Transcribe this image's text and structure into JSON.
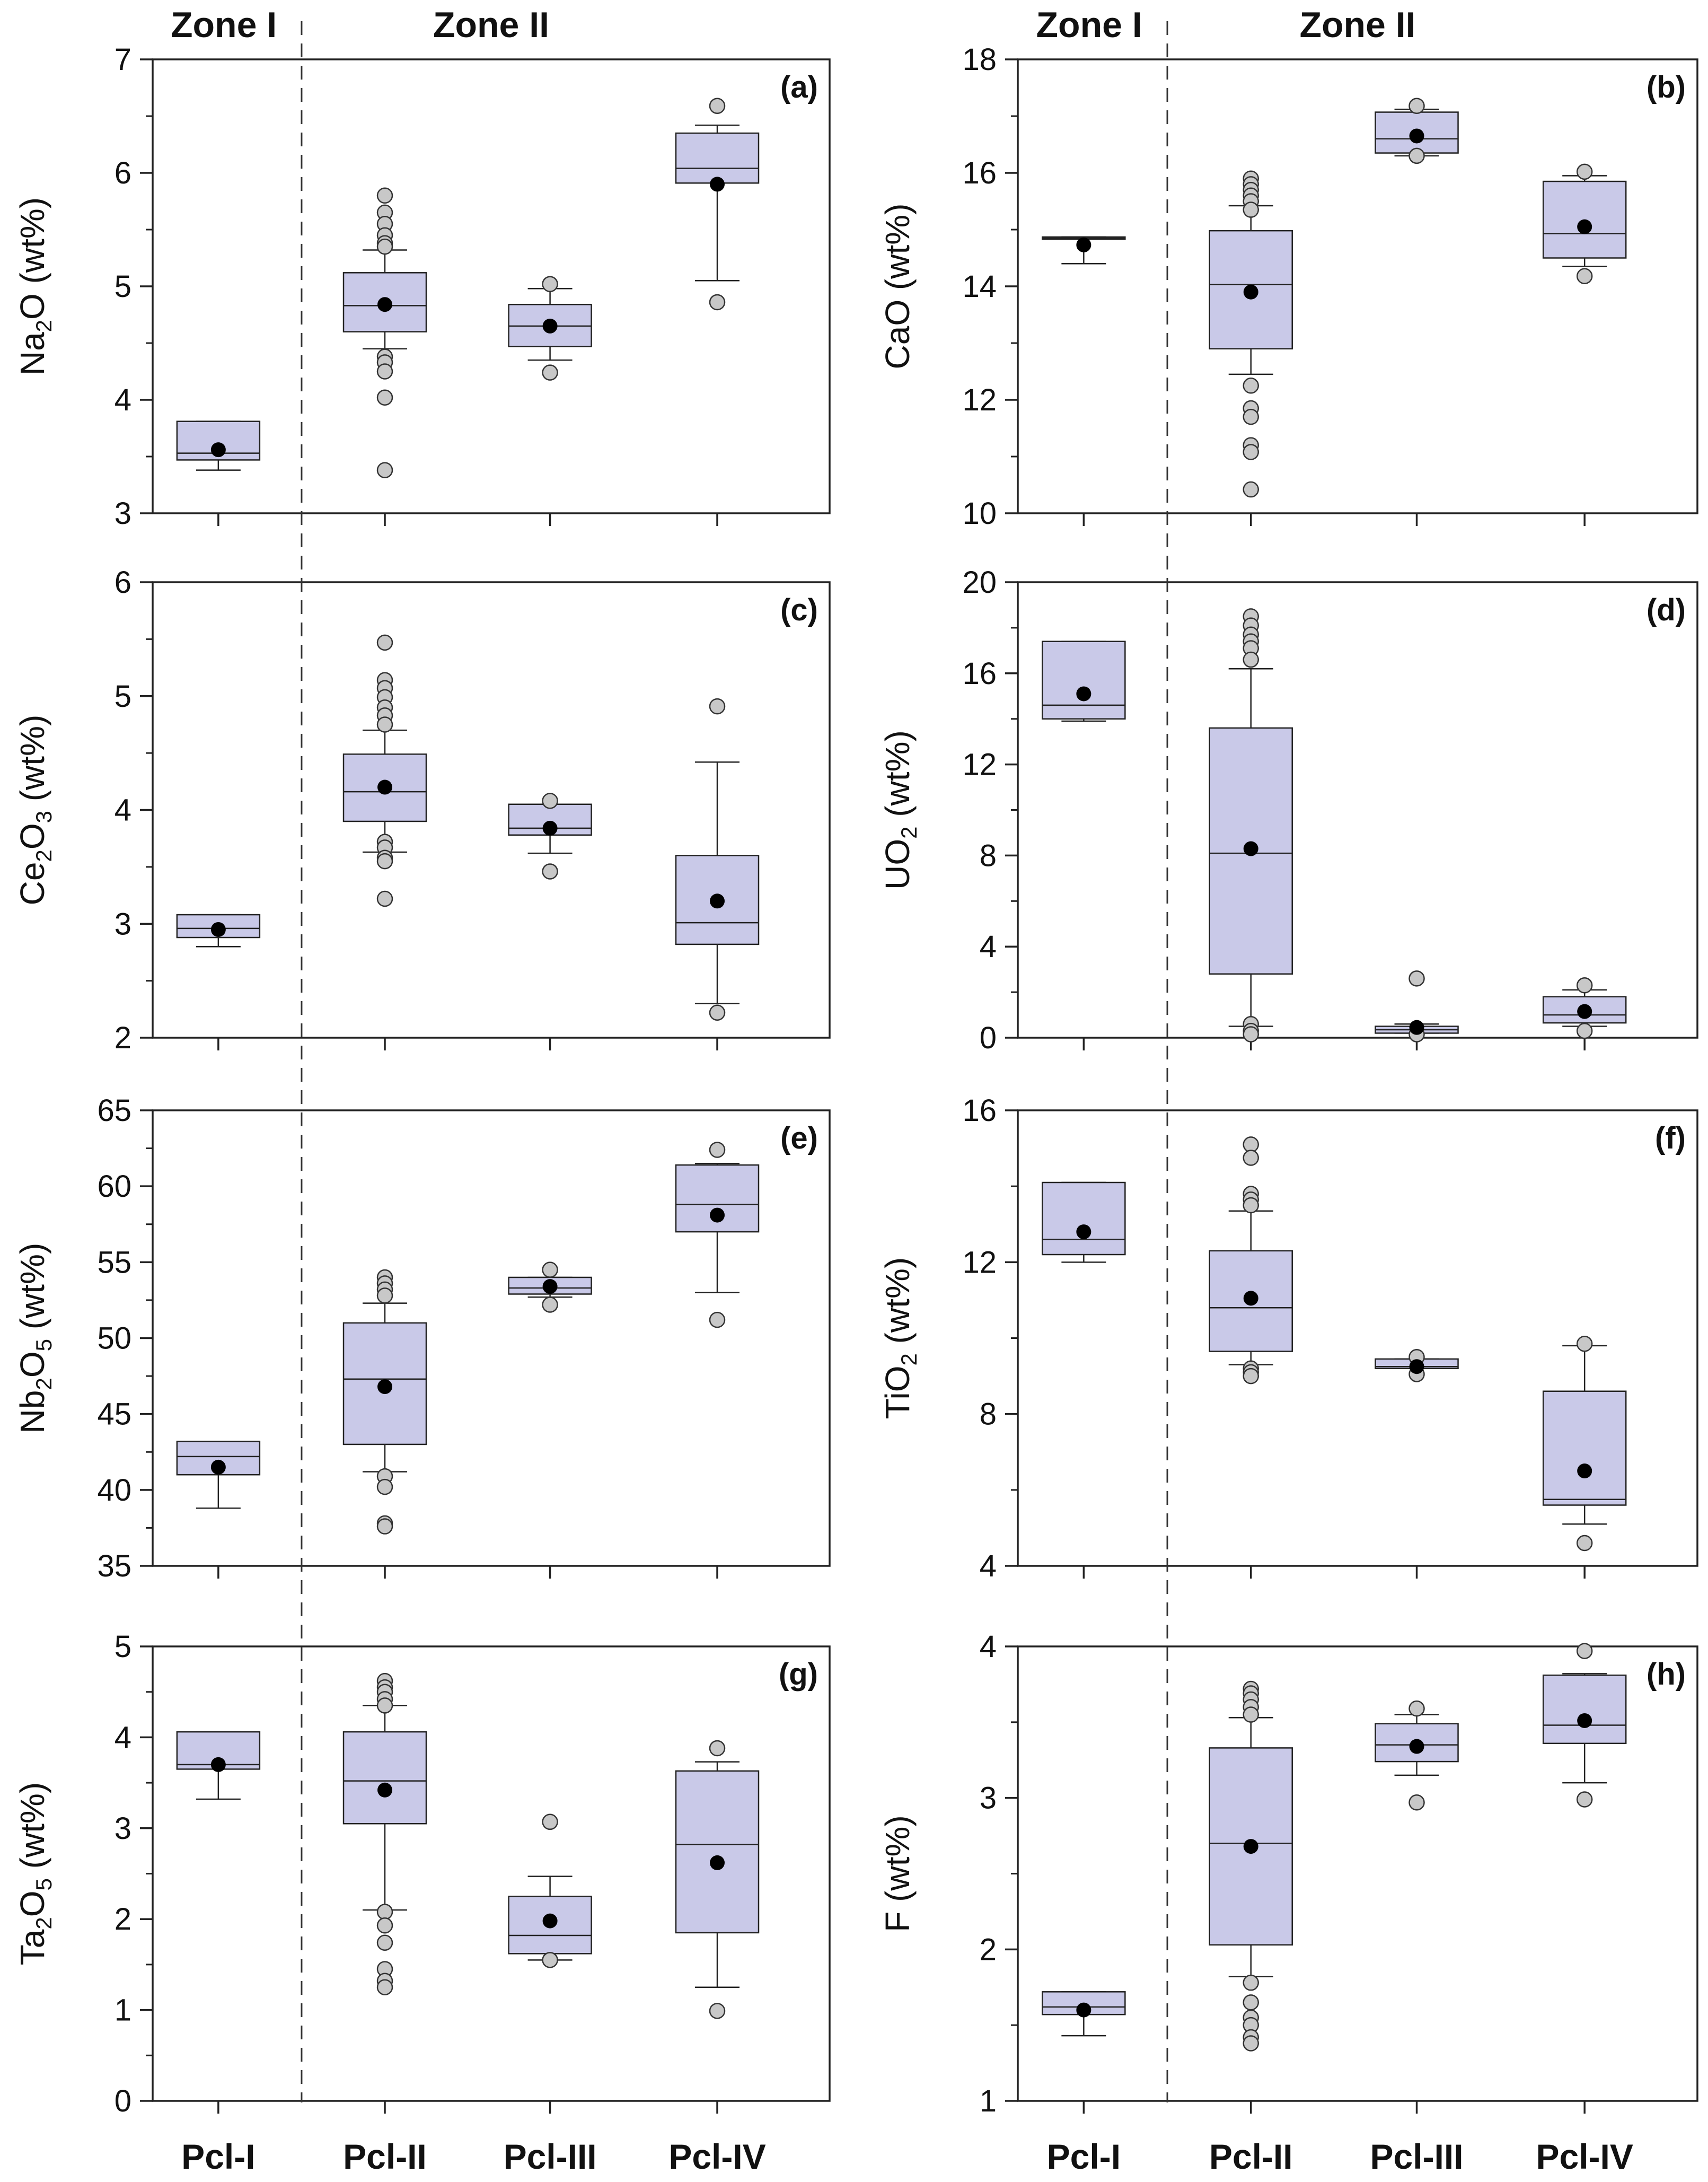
{
  "figure": {
    "zones": [
      "Zone I",
      "Zone II"
    ],
    "categories": [
      "Pcl-I",
      "Pcl-II",
      "Pcl-III",
      "Pcl-IV"
    ]
  },
  "colors": {
    "box_fill": "#c9c9e8",
    "box_stroke": "#222222",
    "outlier_fill": "#c8c8c8",
    "mean_fill": "#000000",
    "frame": "#222222"
  },
  "chart_data": [
    {
      "type": "box",
      "label": "(a)",
      "ylabel": {
        "base": "Na",
        "sub1": "2",
        "mid": "O",
        "sub2": "",
        "tail": " (wt%)"
      },
      "ylim": [
        3,
        7
      ],
      "yticks": [
        3,
        4,
        5,
        6,
        7
      ],
      "categories": [
        "Pcl-I",
        "Pcl-II",
        "Pcl-III",
        "Pcl-IV"
      ],
      "boxes": [
        {
          "whisker_low": 3.38,
          "q1": 3.47,
          "median": 3.53,
          "q3": 3.81,
          "whisker_high": 3.81,
          "mean": 3.56,
          "outliers": []
        },
        {
          "whisker_low": 4.45,
          "q1": 4.6,
          "median": 4.83,
          "q3": 5.12,
          "whisker_high": 5.32,
          "mean": 4.84,
          "outliers": [
            5.8,
            5.65,
            5.55,
            5.45,
            5.38,
            5.35,
            4.38,
            4.33,
            4.25,
            4.02,
            3.38
          ]
        },
        {
          "whisker_low": 4.35,
          "q1": 4.47,
          "median": 4.65,
          "q3": 4.84,
          "whisker_high": 4.98,
          "mean": 4.65,
          "outliers": [
            5.02,
            4.24
          ]
        },
        {
          "whisker_low": 5.05,
          "q1": 5.91,
          "median": 6.04,
          "q3": 6.35,
          "whisker_high": 6.42,
          "mean": 5.9,
          "outliers": [
            6.59,
            4.86
          ]
        }
      ]
    },
    {
      "type": "box",
      "label": "(b)",
      "ylabel": {
        "base": "CaO",
        "sub1": "",
        "mid": "",
        "sub2": "",
        "tail": " (wt%)"
      },
      "ylim": [
        10,
        18
      ],
      "yticks": [
        10,
        12,
        14,
        16,
        18
      ],
      "categories": [
        "Pcl-I",
        "Pcl-II",
        "Pcl-III",
        "Pcl-IV"
      ],
      "boxes": [
        {
          "whisker_low": 14.4,
          "q1": 14.83,
          "median": 14.85,
          "q3": 14.87,
          "whisker_high": 14.87,
          "mean": 14.73,
          "outliers": []
        },
        {
          "whisker_low": 12.45,
          "q1": 12.9,
          "median": 14.03,
          "q3": 14.98,
          "whisker_high": 15.42,
          "mean": 13.9,
          "outliers": [
            15.9,
            15.8,
            15.7,
            15.6,
            15.5,
            15.35,
            12.25,
            11.85,
            11.7,
            11.2,
            11.08,
            10.42
          ]
        },
        {
          "whisker_low": 16.3,
          "q1": 16.35,
          "median": 16.6,
          "q3": 17.07,
          "whisker_high": 17.12,
          "mean": 16.65,
          "outliers": [
            17.18,
            16.3
          ]
        },
        {
          "whisker_low": 14.35,
          "q1": 14.5,
          "median": 14.93,
          "q3": 15.85,
          "whisker_high": 15.95,
          "mean": 15.05,
          "outliers": [
            16.02,
            14.18
          ]
        }
      ]
    },
    {
      "type": "box",
      "label": "(c)",
      "ylabel": {
        "base": "Ce",
        "sub1": "2",
        "mid": "O",
        "sub2": "3",
        "tail": " (wt%)"
      },
      "ylim": [
        2,
        6
      ],
      "yticks": [
        2,
        3,
        4,
        5,
        6
      ],
      "categories": [
        "Pcl-I",
        "Pcl-II",
        "Pcl-III",
        "Pcl-IV"
      ],
      "boxes": [
        {
          "whisker_low": 2.8,
          "q1": 2.88,
          "median": 2.96,
          "q3": 3.08,
          "whisker_high": 3.08,
          "mean": 2.95,
          "outliers": []
        },
        {
          "whisker_low": 3.63,
          "q1": 3.9,
          "median": 4.16,
          "q3": 4.49,
          "whisker_high": 4.7,
          "mean": 4.2,
          "outliers": [
            5.47,
            5.14,
            5.07,
            4.99,
            4.9,
            4.83,
            4.75,
            3.72,
            3.67,
            3.58,
            3.55,
            3.22
          ]
        },
        {
          "whisker_low": 3.62,
          "q1": 3.78,
          "median": 3.84,
          "q3": 4.05,
          "whisker_high": 4.05,
          "mean": 3.84,
          "outliers": [
            4.08,
            3.46
          ]
        },
        {
          "whisker_low": 2.3,
          "q1": 2.82,
          "median": 3.01,
          "q3": 3.6,
          "whisker_high": 4.42,
          "mean": 3.2,
          "outliers": [
            4.91,
            2.22
          ]
        }
      ]
    },
    {
      "type": "box",
      "label": "(d)",
      "ylabel": {
        "base": "UO",
        "sub1": "2",
        "mid": "",
        "sub2": "",
        "tail": " (wt%)"
      },
      "ylim": [
        0,
        20
      ],
      "yticks": [
        0,
        4,
        8,
        12,
        16,
        20
      ],
      "categories": [
        "Pcl-I",
        "Pcl-II",
        "Pcl-III",
        "Pcl-IV"
      ],
      "boxes": [
        {
          "whisker_low": 13.9,
          "q1": 14.0,
          "median": 14.6,
          "q3": 17.4,
          "whisker_high": 17.4,
          "mean": 15.1,
          "outliers": []
        },
        {
          "whisker_low": 0.5,
          "q1": 2.8,
          "median": 8.1,
          "q3": 13.6,
          "whisker_high": 16.2,
          "mean": 8.3,
          "outliers": [
            18.5,
            18.1,
            17.7,
            17.4,
            17.1,
            16.6,
            0.6,
            0.3,
            0.15
          ]
        },
        {
          "whisker_low": 0.2,
          "q1": 0.2,
          "median": 0.35,
          "q3": 0.5,
          "whisker_high": 0.6,
          "mean": 0.45,
          "outliers": [
            2.6,
            0.15
          ]
        },
        {
          "whisker_low": 0.5,
          "q1": 0.65,
          "median": 1.0,
          "q3": 1.8,
          "whisker_high": 2.1,
          "mean": 1.15,
          "outliers": [
            2.3,
            0.3
          ]
        }
      ]
    },
    {
      "type": "box",
      "label": "(e)",
      "ylabel": {
        "base": "Nb",
        "sub1": "2",
        "mid": "O",
        "sub2": "5",
        "tail": " (wt%)"
      },
      "ylim": [
        35,
        65
      ],
      "yticks": [
        35,
        40,
        45,
        50,
        55,
        60,
        65
      ],
      "categories": [
        "Pcl-I",
        "Pcl-II",
        "Pcl-III",
        "Pcl-IV"
      ],
      "boxes": [
        {
          "whisker_low": 38.8,
          "q1": 41.0,
          "median": 42.2,
          "q3": 43.2,
          "whisker_high": 43.2,
          "mean": 41.5,
          "outliers": []
        },
        {
          "whisker_low": 41.2,
          "q1": 43.0,
          "median": 47.3,
          "q3": 51.0,
          "whisker_high": 52.3,
          "mean": 46.8,
          "outliers": [
            54.0,
            53.6,
            53.2,
            52.8,
            40.9,
            40.2,
            37.8,
            37.6
          ]
        },
        {
          "whisker_low": 52.7,
          "q1": 52.9,
          "median": 53.3,
          "q3": 54.0,
          "whisker_high": 54.0,
          "mean": 53.4,
          "outliers": [
            54.5,
            52.2
          ]
        },
        {
          "whisker_low": 53.0,
          "q1": 57.0,
          "median": 58.8,
          "q3": 61.4,
          "whisker_high": 61.5,
          "mean": 58.1,
          "outliers": [
            62.4,
            51.2
          ]
        }
      ]
    },
    {
      "type": "box",
      "label": "(f)",
      "ylabel": {
        "base": "TiO",
        "sub1": "2",
        "mid": "",
        "sub2": "",
        "tail": " (wt%)"
      },
      "ylim": [
        4,
        16
      ],
      "yticks": [
        4,
        8,
        12,
        16
      ],
      "categories": [
        "Pcl-I",
        "Pcl-II",
        "Pcl-III",
        "Pcl-IV"
      ],
      "boxes": [
        {
          "whisker_low": 12.0,
          "q1": 12.2,
          "median": 12.6,
          "q3": 14.1,
          "whisker_high": 14.1,
          "mean": 12.8,
          "outliers": []
        },
        {
          "whisker_low": 9.3,
          "q1": 9.65,
          "median": 10.8,
          "q3": 12.3,
          "whisker_high": 13.35,
          "mean": 11.05,
          "outliers": [
            15.1,
            14.75,
            13.8,
            13.65,
            13.5,
            9.2,
            9.1,
            9.0
          ]
        },
        {
          "whisker_low": 9.2,
          "q1": 9.2,
          "median": 9.25,
          "q3": 9.45,
          "whisker_high": 9.45,
          "mean": 9.25,
          "outliers": [
            9.5,
            9.05
          ]
        },
        {
          "whisker_low": 5.1,
          "q1": 5.6,
          "median": 5.75,
          "q3": 8.6,
          "whisker_high": 9.8,
          "mean": 6.5,
          "outliers": [
            9.85,
            4.6
          ]
        }
      ]
    },
    {
      "type": "box",
      "label": "(g)",
      "ylabel": {
        "base": "Ta",
        "sub1": "2",
        "mid": "O",
        "sub2": "5",
        "tail": " (wt%)"
      },
      "ylim": [
        0,
        5
      ],
      "yticks": [
        0,
        1,
        2,
        3,
        4,
        5
      ],
      "categories": [
        "Pcl-I",
        "Pcl-II",
        "Pcl-III",
        "Pcl-IV"
      ],
      "boxes": [
        {
          "whisker_low": 3.32,
          "q1": 3.65,
          "median": 3.7,
          "q3": 4.06,
          "whisker_high": 4.06,
          "mean": 3.7,
          "outliers": []
        },
        {
          "whisker_low": 2.1,
          "q1": 3.05,
          "median": 3.52,
          "q3": 4.06,
          "whisker_high": 4.35,
          "mean": 3.42,
          "outliers": [
            4.62,
            4.55,
            4.5,
            4.42,
            4.35,
            2.08,
            1.93,
            1.74,
            1.45,
            1.32,
            1.25
          ]
        },
        {
          "whisker_low": 1.55,
          "q1": 1.62,
          "median": 1.82,
          "q3": 2.25,
          "whisker_high": 2.47,
          "mean": 1.98,
          "outliers": [
            3.07,
            1.55
          ]
        },
        {
          "whisker_low": 1.25,
          "q1": 1.85,
          "median": 2.82,
          "q3": 3.63,
          "whisker_high": 3.73,
          "mean": 2.62,
          "outliers": [
            3.88,
            0.99
          ]
        }
      ]
    },
    {
      "type": "box",
      "label": "(h)",
      "ylabel": {
        "base": "F",
        "sub1": "",
        "mid": "",
        "sub2": "",
        "tail": " (wt%)"
      },
      "ylim": [
        1,
        4
      ],
      "yticks": [
        1,
        2,
        3,
        4
      ],
      "categories": [
        "Pcl-I",
        "Pcl-II",
        "Pcl-III",
        "Pcl-IV"
      ],
      "boxes": [
        {
          "whisker_low": 1.43,
          "q1": 1.57,
          "median": 1.62,
          "q3": 1.72,
          "whisker_high": 1.72,
          "mean": 1.6,
          "outliers": []
        },
        {
          "whisker_low": 1.82,
          "q1": 2.03,
          "median": 2.7,
          "q3": 3.33,
          "whisker_high": 3.53,
          "mean": 2.68,
          "outliers": [
            3.72,
            3.69,
            3.65,
            3.6,
            3.55,
            1.78,
            1.65,
            1.55,
            1.5,
            1.42,
            1.38
          ]
        },
        {
          "whisker_low": 3.15,
          "q1": 3.24,
          "median": 3.35,
          "q3": 3.49,
          "whisker_high": 3.55,
          "mean": 3.34,
          "outliers": [
            3.59,
            2.97
          ]
        },
        {
          "whisker_low": 3.1,
          "q1": 3.36,
          "median": 3.48,
          "q3": 3.81,
          "whisker_high": 3.82,
          "mean": 3.51,
          "outliers": [
            3.97,
            2.99
          ]
        }
      ]
    }
  ]
}
